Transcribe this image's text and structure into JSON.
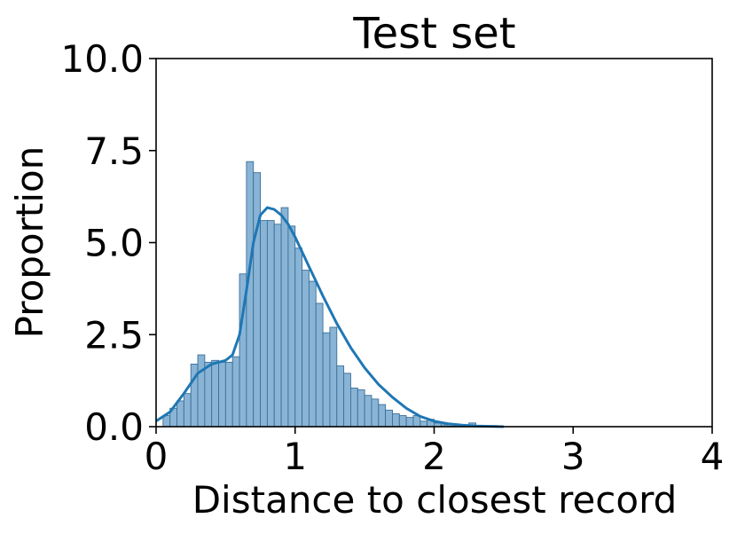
{
  "chart_data": {
    "type": "bar",
    "title": "Test set",
    "xlabel": "Distance to closest record",
    "ylabel": "Proportion",
    "xlim": [
      0,
      4
    ],
    "ylim": [
      0,
      10
    ],
    "xticks": [
      0,
      1,
      2,
      3,
      4
    ],
    "xtick_labels": [
      "0",
      "1",
      "2",
      "3",
      "4"
    ],
    "yticks": [
      0,
      2.5,
      5,
      7.5,
      10
    ],
    "ytick_labels": [
      "0.0",
      "2.5",
      "5.0",
      "7.5",
      "10.0"
    ],
    "grid": false,
    "colors": {
      "bar_fill": "#8ab4d5",
      "bar_edge": "#3a6f98",
      "kde_line": "#1f77b4",
      "axes": "#000000"
    },
    "histogram": {
      "bin_width": 0.05,
      "x_start": 0.05,
      "values": [
        0.3,
        0.5,
        0.7,
        0.9,
        1.7,
        1.95,
        1.75,
        1.8,
        1.75,
        1.75,
        1.9,
        4.15,
        7.2,
        6.9,
        5.6,
        5.6,
        5.5,
        5.95,
        5.45,
        4.85,
        4.25,
        3.95,
        3.35,
        2.55,
        2.7,
        1.65,
        1.45,
        1.05,
        1.0,
        0.85,
        0.75,
        0.6,
        0.45,
        0.35,
        0.3,
        0.25,
        0.3,
        0.15,
        0.2,
        0.1,
        0.05,
        0.02,
        0.05,
        0.03,
        0.1,
        0.02,
        0.02,
        0.03
      ]
    },
    "kde": {
      "x": [
        0.0,
        0.1,
        0.2,
        0.3,
        0.4,
        0.5,
        0.55,
        0.6,
        0.65,
        0.7,
        0.75,
        0.8,
        0.85,
        0.9,
        0.95,
        1.0,
        1.05,
        1.1,
        1.15,
        1.2,
        1.3,
        1.4,
        1.5,
        1.6,
        1.7,
        1.8,
        1.9,
        2.0,
        2.1,
        2.2,
        2.3,
        2.4,
        2.5
      ],
      "y": [
        0.15,
        0.4,
        0.9,
        1.45,
        1.7,
        1.8,
        1.95,
        2.5,
        3.7,
        5.0,
        5.75,
        5.95,
        5.9,
        5.75,
        5.5,
        5.15,
        4.75,
        4.35,
        3.95,
        3.55,
        2.8,
        2.15,
        1.6,
        1.15,
        0.8,
        0.5,
        0.28,
        0.15,
        0.08,
        0.04,
        0.02,
        0.01,
        0.0
      ]
    }
  }
}
